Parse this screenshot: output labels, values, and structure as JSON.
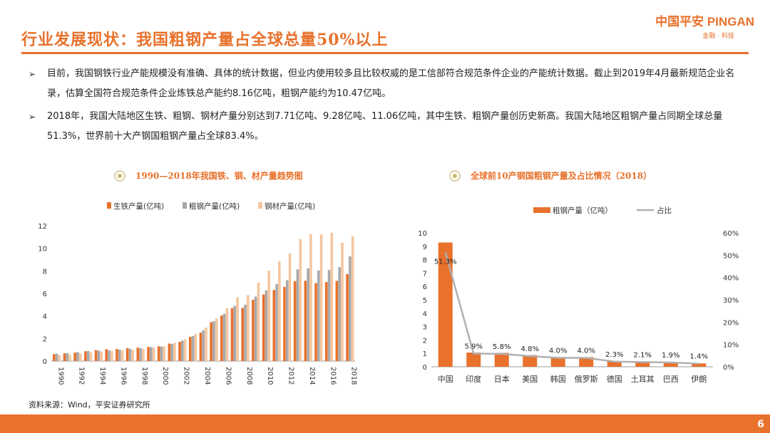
{
  "header": {
    "title": "行业发展现状：我国粗钢产量占全球总量50%以上",
    "logo_main": "中国平安 PINGAN",
    "logo_sub": "金融 · 科技"
  },
  "bullets": [
    "目前，我国钢铁行业产能规模没有准确、具体的统计数据，但业内使用较多且比较权威的是工信部符合规范条件企业的产能统计数据。截止到2019年4月最新规范企业名录，估算全国符合规范条件企业炼铁总产能约8.16亿吨，粗钢产能约为10.47亿吨。",
    "2018年，我国大陆地区生铁、粗钢、钢材产量分别达到7.71亿吨、9.28亿吨、11.06亿吨，其中生铁、粗钢产量创历史新高。我国大陆地区粗钢产量占同期全球总量51.3%，世界前十大产钢国粗钢产量占全球83.4%。"
  ],
  "bullet_marker": "➢",
  "colors": {
    "accent": "#e8712b",
    "iron": "#e8712b",
    "steel": "#a7a8ab",
    "products": "#f5c69e",
    "share_line": "#b0b0b0"
  },
  "chart_data": [
    {
      "type": "bar",
      "title": "1990—2018年我国铁、钢、材产量趋势图",
      "categories": [
        "1990",
        "1991",
        "1992",
        "1993",
        "1994",
        "1995",
        "1996",
        "1997",
        "1998",
        "1999",
        "2000",
        "2001",
        "2002",
        "2003",
        "2004",
        "2005",
        "2006",
        "2007",
        "2008",
        "2009",
        "2010",
        "2011",
        "2012",
        "2013",
        "2014",
        "2015",
        "2016",
        "2017",
        "2018"
      ],
      "x_tick_labels": [
        "1990",
        "1992",
        "1994",
        "1996",
        "1998",
        "2000",
        "2002",
        "2004",
        "2006",
        "2008",
        "2010",
        "2012",
        "2014",
        "2016",
        "2018"
      ],
      "ylim": [
        0,
        12
      ],
      "yticks": [
        "0",
        "2",
        "4",
        "6",
        "8",
        "10",
        "12"
      ],
      "legend_position": "top",
      "series": [
        {
          "name": "生铁产量(亿吨)",
          "values": [
            0.62,
            0.68,
            0.75,
            0.87,
            0.97,
            1.05,
            1.07,
            1.15,
            1.19,
            1.25,
            1.31,
            1.56,
            1.71,
            2.14,
            2.52,
            3.44,
            4.04,
            4.69,
            4.71,
            5.44,
            5.9,
            6.3,
            6.58,
            7.09,
            7.12,
            6.91,
            7.01,
            7.11,
            7.71
          ]
        },
        {
          "name": "粗钢产量(亿吨)",
          "values": [
            0.66,
            0.71,
            0.8,
            0.89,
            0.93,
            0.95,
            1.01,
            1.09,
            1.15,
            1.24,
            1.29,
            1.52,
            1.82,
            2.22,
            2.73,
            3.53,
            4.19,
            4.89,
            5.0,
            5.72,
            6.27,
            6.83,
            7.17,
            8.13,
            8.23,
            8.04,
            8.08,
            8.32,
            9.28
          ]
        },
        {
          "name": "钢材产量(亿吨)",
          "values": [
            0.52,
            0.56,
            0.67,
            0.77,
            0.84,
            0.9,
            0.94,
            0.99,
            1.07,
            1.21,
            1.31,
            1.61,
            1.93,
            2.41,
            2.97,
            3.78,
            4.69,
            5.66,
            5.85,
            6.96,
            8.01,
            8.86,
            9.55,
            10.82,
            11.26,
            11.23,
            11.38,
            10.48,
            11.06
          ]
        }
      ]
    },
    {
      "type": "bar",
      "title": "全球前10产钢国粗钢产量及占比情况（2018）",
      "categories": [
        "中国",
        "印度",
        "日本",
        "美国",
        "韩国",
        "俄罗斯",
        "德国",
        "土耳其",
        "巴西",
        "伊朗"
      ],
      "ylim": [
        0,
        10
      ],
      "yticks": [
        "0",
        "1",
        "2",
        "3",
        "4",
        "5",
        "6",
        "7",
        "8",
        "9",
        "10"
      ],
      "y2lim": [
        0,
        60
      ],
      "y2ticks": [
        "0%",
        "10%",
        "20%",
        "30%",
        "40%",
        "50%",
        "60%"
      ],
      "legend_position": "top",
      "series": [
        {
          "name": "粗钢产量（亿吨）",
          "type": "bar",
          "values": [
            9.28,
            1.06,
            1.04,
            0.87,
            0.73,
            0.72,
            0.42,
            0.37,
            0.35,
            0.25
          ]
        },
        {
          "name": "占比",
          "type": "line",
          "values": [
            51.3,
            5.9,
            5.8,
            4.8,
            4.0,
            4.0,
            2.3,
            2.1,
            1.9,
            1.4
          ]
        }
      ],
      "data_labels": [
        "51.3%",
        "5.9%",
        "5.8%",
        "4.8%",
        "4.0%",
        "4.0%",
        "2.3%",
        "2.1%",
        "1.9%",
        "1.4%"
      ]
    }
  ],
  "source": "资料来源：Wind，平安证券研究所",
  "page_number": "6"
}
